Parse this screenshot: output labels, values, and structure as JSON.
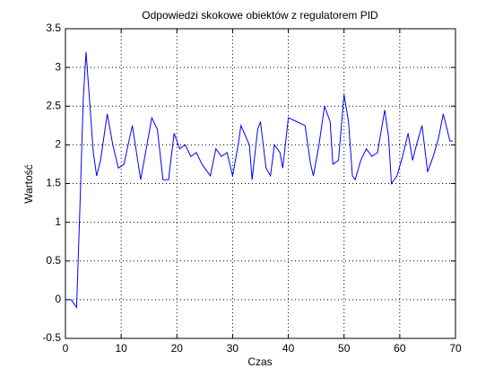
{
  "chart_data": {
    "type": "line",
    "title": "Odpowiedzi skokowe obiektów z regulatorem PID",
    "x_label": "Czas",
    "y_label": "Wartość",
    "x": [
      0,
      1,
      1.5,
      2,
      2.6,
      3.2,
      3.7,
      4.3,
      5,
      5.6,
      6.3,
      7.5,
      8.5,
      9.5,
      10.5,
      12,
      13.5,
      15.5,
      16.5,
      17.5,
      18.5,
      19.5,
      20.5,
      21.5,
      22.5,
      23.5,
      24.5,
      25.5,
      26,
      27,
      28,
      29,
      30,
      31,
      31.5,
      33,
      33.5,
      34.5,
      35,
      36,
      36.8,
      37.5,
      38.5,
      39,
      40,
      41.5,
      43,
      44,
      44.5,
      45.5,
      46.5,
      47.5,
      48,
      49,
      50,
      50.8,
      51.5,
      52,
      53,
      54,
      55,
      56,
      57.3,
      58,
      58.5,
      59.5,
      60.5,
      61.5,
      62.3,
      63,
      64,
      65,
      66,
      67,
      67.8,
      68.5,
      69,
      69.5
    ],
    "values": [
      0,
      0,
      -0.05,
      -0.1,
      1.2,
      2.6,
      3.2,
      2.6,
      1.9,
      1.6,
      1.8,
      2.4,
      2.0,
      1.7,
      1.75,
      2.25,
      1.55,
      2.35,
      2.2,
      1.55,
      1.55,
      2.15,
      1.95,
      2.0,
      1.85,
      1.9,
      1.75,
      1.65,
      1.6,
      1.95,
      1.85,
      1.9,
      1.6,
      2.0,
      2.25,
      2.0,
      1.55,
      2.2,
      2.3,
      1.7,
      1.6,
      2.0,
      1.9,
      1.7,
      2.35,
      2.3,
      2.25,
      1.75,
      1.6,
      2.0,
      2.5,
      2.3,
      1.75,
      1.8,
      2.65,
      2.3,
      1.6,
      1.55,
      1.8,
      1.95,
      1.85,
      1.9,
      2.45,
      2.1,
      1.5,
      1.6,
      1.85,
      2.15,
      1.8,
      2.0,
      2.25,
      1.65,
      1.85,
      2.1,
      2.4,
      2.2,
      2.05,
      2.05
    ],
    "color": "#0000ff",
    "xlim": [
      0,
      70
    ],
    "xticks": [
      0,
      10,
      20,
      30,
      40,
      50,
      60,
      70
    ],
    "ylim": [
      -0.5,
      3.5
    ],
    "yticks": [
      -0.5,
      0,
      0.5,
      1,
      1.5,
      2,
      2.5,
      3,
      3.5
    ],
    "grid": true
  }
}
